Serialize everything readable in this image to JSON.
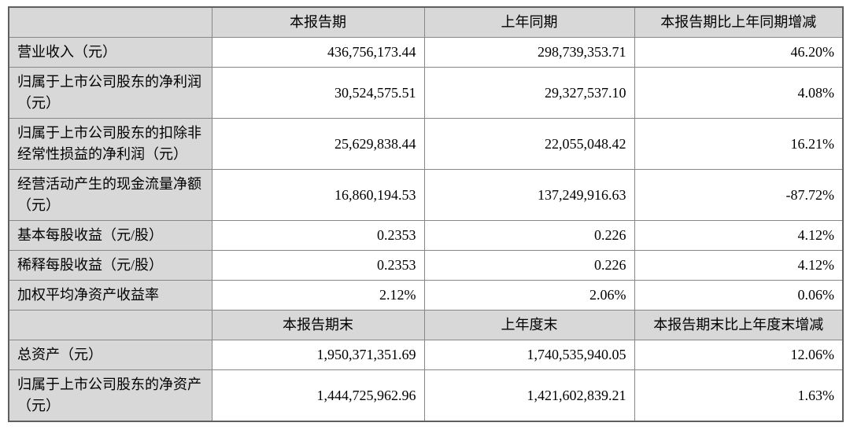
{
  "table": {
    "section1": {
      "headers": {
        "blank": "",
        "current": "本报告期",
        "prior": "上年同期",
        "change": "本报告期比上年同期增减"
      },
      "rows": [
        {
          "label": "营业收入（元）",
          "current": "436,756,173.44",
          "prior": "298,739,353.71",
          "change": "46.20%"
        },
        {
          "label": "归属于上市公司股东的净利润（元）",
          "current": "30,524,575.51",
          "prior": "29,327,537.10",
          "change": "4.08%"
        },
        {
          "label": "归属于上市公司股东的扣除非经常性损益的净利润（元）",
          "current": "25,629,838.44",
          "prior": "22,055,048.42",
          "change": "16.21%"
        },
        {
          "label": "经营活动产生的现金流量净额（元）",
          "current": "16,860,194.53",
          "prior": "137,249,916.63",
          "change": "-87.72%"
        },
        {
          "label": "基本每股收益（元/股）",
          "current": "0.2353",
          "prior": "0.226",
          "change": "4.12%"
        },
        {
          "label": "稀释每股收益（元/股）",
          "current": "0.2353",
          "prior": "0.226",
          "change": "4.12%"
        },
        {
          "label": "加权平均净资产收益率",
          "current": "2.12%",
          "prior": "2.06%",
          "change": "0.06%"
        }
      ]
    },
    "section2": {
      "headers": {
        "blank": "",
        "current": "本报告期末",
        "prior": "上年度末",
        "change": "本报告期末比上年度末增减"
      },
      "rows": [
        {
          "label": "总资产（元）",
          "current": "1,950,371,351.69",
          "prior": "1,740,535,940.05",
          "change": "12.06%"
        },
        {
          "label": "归属于上市公司股东的净资产（元）",
          "current": "1,444,725,962.96",
          "prior": "1,421,602,839.21",
          "change": "1.63%"
        }
      ]
    },
    "colors": {
      "header_background": "#d8d8d8",
      "label_column_background": "#d8d8d8",
      "cell_background": "#ffffff",
      "inner_border": "#878787",
      "outer_border": "#5f5f5f",
      "text": "#000000"
    }
  }
}
